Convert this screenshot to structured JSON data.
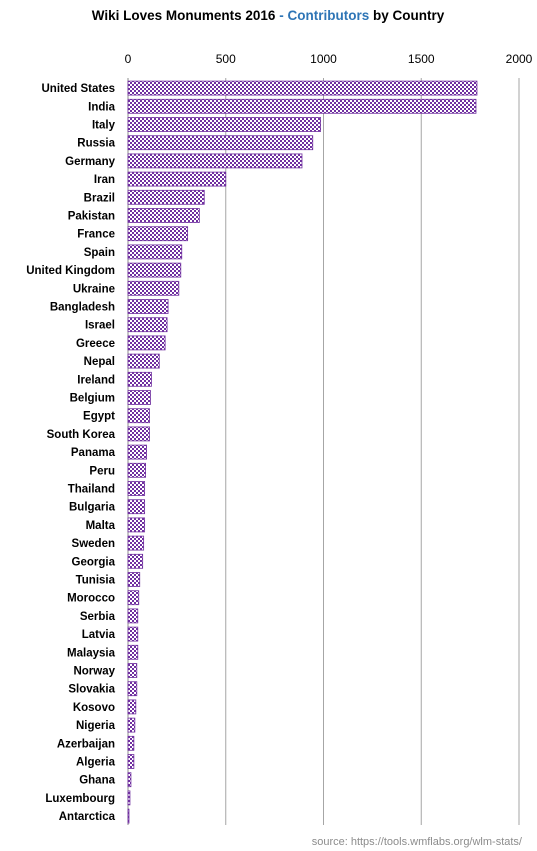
{
  "title": {
    "part1": "Wiki Loves Monuments 2016",
    "separator": "-",
    "highlight": "Contributors",
    "part2": "by Country",
    "highlight_color": "#2e75b6"
  },
  "source": "source: https://tools.wmflabs.org/wlm-stats/",
  "bar_color": "#7030a0",
  "bar_pattern": "checkered",
  "chart_data": {
    "type": "bar",
    "orientation": "horizontal",
    "xlim": [
      0,
      2000
    ],
    "xticks": [
      0,
      500,
      1000,
      1500,
      2000
    ],
    "x_axis_position": "top",
    "grid": true,
    "categories": [
      "United States",
      "India",
      "Italy",
      "Russia",
      "Germany",
      "Iran",
      "Brazil",
      "Pakistan",
      "France",
      "Spain",
      "United Kingdom",
      "Ukraine",
      "Bangladesh",
      "Israel",
      "Greece",
      "Nepal",
      "Ireland",
      "Belgium",
      "Egypt",
      "South Korea",
      "Panama",
      "Peru",
      "Thailand",
      "Bulgaria",
      "Malta",
      "Sweden",
      "Georgia",
      "Tunisia",
      "Morocco",
      "Serbia",
      "Latvia",
      "Malaysia",
      "Norway",
      "Slovakia",
      "Kosovo",
      "Nigeria",
      "Azerbaijan",
      "Algeria",
      "Ghana",
      "Luxembourg",
      "Antarctica"
    ],
    "values": [
      1785,
      1780,
      985,
      945,
      890,
      500,
      390,
      365,
      305,
      275,
      270,
      260,
      205,
      200,
      190,
      160,
      120,
      115,
      110,
      110,
      95,
      90,
      85,
      85,
      85,
      80,
      75,
      60,
      55,
      50,
      50,
      50,
      45,
      45,
      40,
      35,
      30,
      30,
      15,
      10,
      5
    ]
  }
}
